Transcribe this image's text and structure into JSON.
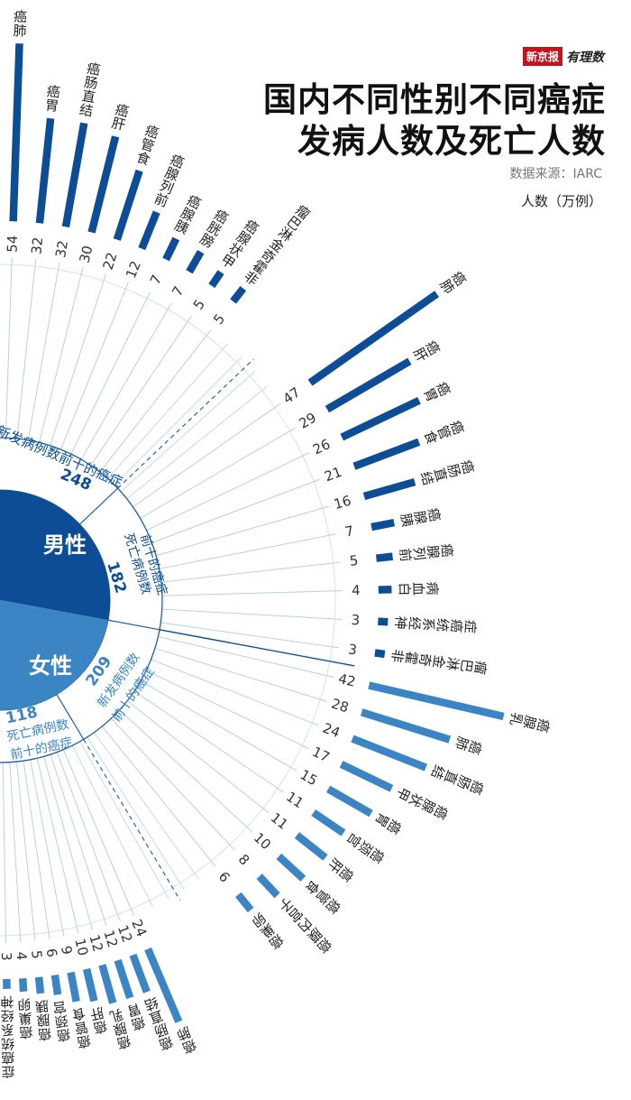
{
  "brand": {
    "logo": "新京报",
    "column": "有理数"
  },
  "header": {
    "title_line1": "国内不同性别不同癌症",
    "title_line2": "发病人数及死亡人数",
    "source": "数据来源：IARC",
    "unit": "人数（万例）"
  },
  "center": {
    "male": {
      "label": "男性",
      "new_total": "248",
      "new_caption": "新发病例数前十的癌症",
      "death_total": "182",
      "death_caption_1": "死亡病例数",
      "death_caption_2": "前十的癌症"
    },
    "female": {
      "label": "女性",
      "new_total": "209",
      "new_caption_1": "新发病例数",
      "new_caption_2": "前十的癌症",
      "death_total": "118",
      "death_caption_1": "死亡病例数",
      "death_caption_2": "前十的癌症"
    }
  },
  "chart_data": {
    "type": "bar",
    "layout": "radial half-circle",
    "title": "国内不同性别不同癌症发病人数及死亡人数",
    "unit": "万例",
    "colors": {
      "male": "#0d4d96",
      "female": "#3b85c4"
    },
    "series": [
      {
        "name": "男性新发病例数前十的癌症",
        "total": 248,
        "categories": [
          "肺癌",
          "胃癌",
          "结直肠癌",
          "肝癌",
          "食管癌",
          "前列腺癌",
          "胰腺癌",
          "膀胱癌",
          "甲状腺癌",
          "非霍奇金淋巴瘤"
        ],
        "values": [
          54,
          32,
          32,
          30,
          22,
          12,
          7,
          7,
          5,
          5
        ]
      },
      {
        "name": "男性死亡病例数前十的癌症",
        "total": 182,
        "categories": [
          "肺癌",
          "肝癌",
          "胃癌",
          "食管癌",
          "结直肠癌",
          "胰腺癌",
          "前列腺癌",
          "白血病",
          "神经系统癌症",
          "非霍奇金淋巴瘤"
        ],
        "values": [
          47,
          29,
          26,
          21,
          16,
          7,
          5,
          4,
          3,
          3
        ]
      },
      {
        "name": "女性新发病例数前十的癌症",
        "total": 209,
        "categories": [
          "乳腺癌",
          "肺癌",
          "结直肠癌",
          "甲状腺癌",
          "胃癌",
          "宫颈癌",
          "肝癌",
          "食管癌",
          "子宫内膜癌",
          "卵巢癌"
        ],
        "values": [
          42,
          28,
          24,
          17,
          15,
          11,
          11,
          10,
          8,
          6
        ]
      },
      {
        "name": "女性死亡病例数前十的癌症",
        "total": 118,
        "categories": [
          "肺癌",
          "结直肠癌",
          "胃癌",
          "乳腺癌",
          "肝癌",
          "食管癌",
          "宫颈癌",
          "胰腺癌",
          "卵巢癌",
          "神经系统癌症"
        ],
        "values": [
          24,
          12,
          12,
          12,
          10,
          9,
          6,
          5,
          4,
          3
        ]
      }
    ]
  }
}
